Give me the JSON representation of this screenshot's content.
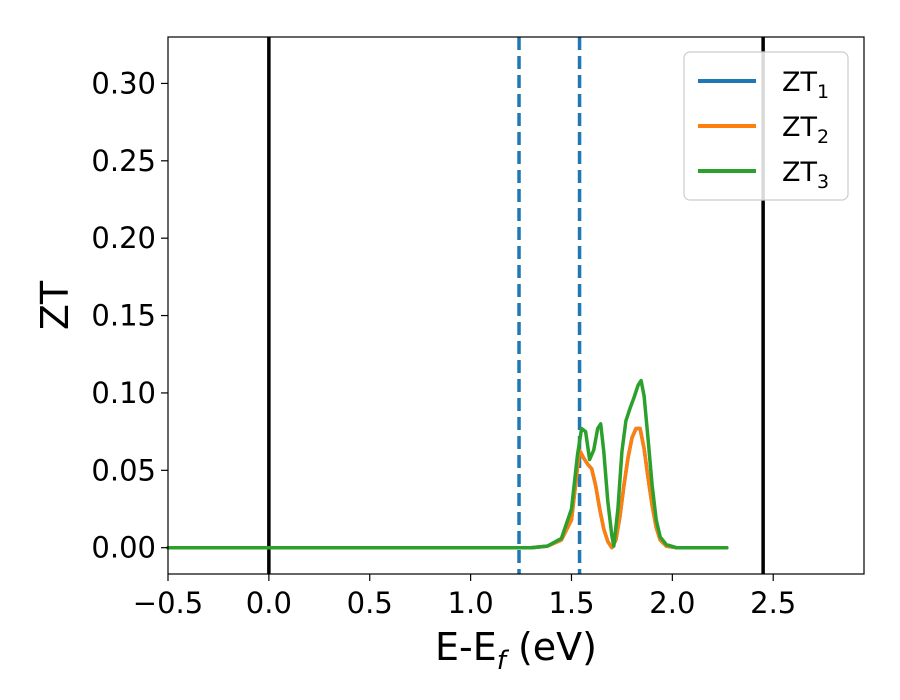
{
  "chart_data": {
    "type": "line",
    "xlabel": "E-E",
    "xlabel_sub": "f",
    "xlabel_unit": " (eV)",
    "ylabel": "ZT",
    "xlim": [
      -0.5,
      2.95
    ],
    "ylim": [
      -0.017,
      0.33
    ],
    "xticks": [
      -0.5,
      0.0,
      0.5,
      1.0,
      1.5,
      2.0,
      2.5
    ],
    "xtick_labels": [
      "−0.5",
      "0.0",
      "0.5",
      "1.0",
      "1.5",
      "2.0",
      "2.5"
    ],
    "yticks": [
      0.0,
      0.05,
      0.1,
      0.15,
      0.2,
      0.25,
      0.3
    ],
    "ytick_labels": [
      "0.00",
      "0.05",
      "0.10",
      "0.15",
      "0.20",
      "0.25",
      "0.30"
    ],
    "grid": false,
    "legend_position": "top-right",
    "vlines": [
      {
        "x": 0.0,
        "style": "solid",
        "color": "#000000"
      },
      {
        "x": 2.45,
        "style": "solid",
        "color": "#000000"
      },
      {
        "x": 1.24,
        "style": "dashed",
        "color": "#1f77b4"
      },
      {
        "x": 1.54,
        "style": "dashed",
        "color": "#1f77b4"
      }
    ],
    "series": [
      {
        "name": "ZT",
        "sub": "1",
        "color": "#1f77b4",
        "x": [
          -0.5,
          1.3,
          1.38,
          1.45,
          1.5,
          1.54,
          1.56,
          1.58,
          1.6,
          1.62,
          1.64,
          1.66,
          1.68,
          1.7,
          1.72,
          1.74,
          1.76,
          1.78,
          1.8,
          1.82,
          1.84,
          1.86,
          1.88,
          1.9,
          1.92,
          1.94,
          1.97,
          2.02,
          2.1,
          2.27
        ],
        "y": [
          0.0,
          0.0,
          0.001,
          0.005,
          0.018,
          0.063,
          0.058,
          0.054,
          0.051,
          0.04,
          0.025,
          0.012,
          0.004,
          0.0,
          0.005,
          0.02,
          0.04,
          0.058,
          0.071,
          0.077,
          0.077,
          0.064,
          0.045,
          0.027,
          0.013,
          0.005,
          0.001,
          0.0,
          0.0,
          0.0
        ]
      },
      {
        "name": "ZT",
        "sub": "2",
        "color": "#ff7f0e",
        "x": [
          -0.5,
          1.3,
          1.38,
          1.45,
          1.5,
          1.54,
          1.56,
          1.58,
          1.6,
          1.62,
          1.64,
          1.66,
          1.68,
          1.7,
          1.72,
          1.74,
          1.76,
          1.78,
          1.8,
          1.82,
          1.84,
          1.86,
          1.88,
          1.9,
          1.92,
          1.94,
          1.97,
          2.02,
          2.1,
          2.27
        ],
        "y": [
          0.0,
          0.0,
          0.001,
          0.005,
          0.018,
          0.063,
          0.058,
          0.054,
          0.051,
          0.04,
          0.025,
          0.012,
          0.004,
          0.0,
          0.005,
          0.02,
          0.04,
          0.058,
          0.071,
          0.077,
          0.077,
          0.064,
          0.045,
          0.027,
          0.013,
          0.005,
          0.001,
          0.0,
          0.0,
          0.0
        ]
      },
      {
        "name": "ZT",
        "sub": "3",
        "color": "#2ca02c",
        "x": [
          -0.5,
          1.3,
          1.38,
          1.45,
          1.5,
          1.53,
          1.55,
          1.57,
          1.59,
          1.61,
          1.63,
          1.645,
          1.66,
          1.68,
          1.7,
          1.71,
          1.73,
          1.75,
          1.77,
          1.79,
          1.81,
          1.83,
          1.845,
          1.86,
          1.88,
          1.9,
          1.92,
          1.94,
          1.97,
          2.02,
          2.1,
          2.27
        ],
        "y": [
          0.0,
          0.0,
          0.001,
          0.006,
          0.025,
          0.06,
          0.077,
          0.075,
          0.057,
          0.063,
          0.077,
          0.08,
          0.062,
          0.03,
          0.008,
          0.001,
          0.025,
          0.062,
          0.082,
          0.09,
          0.097,
          0.105,
          0.108,
          0.098,
          0.07,
          0.04,
          0.018,
          0.007,
          0.002,
          0.0,
          0.0,
          0.0
        ]
      }
    ]
  }
}
